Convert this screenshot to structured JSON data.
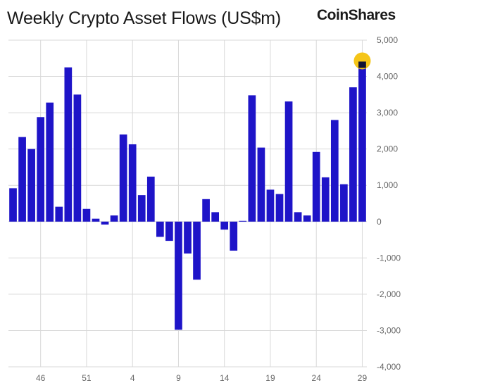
{
  "header": {
    "title": "Weekly Crypto Asset Flows (US$m)",
    "brand": "CoinShares"
  },
  "colors": {
    "bar": "#1e14c8",
    "grid": "#d9d9d9",
    "highlight_marker": "#f5c518",
    "highlight_bar": "#111133"
  },
  "chart_data": {
    "type": "bar",
    "title": "Weekly Crypto Asset Flows (US$m)",
    "xlabel": "",
    "ylabel": "",
    "ylim": [
      -4000,
      5000
    ],
    "yticks": [
      -4000,
      -3000,
      -2000,
      -1000,
      0,
      1000,
      2000,
      3000,
      4000,
      5000
    ],
    "ytick_labels": [
      "-4,000",
      "-3,000",
      "-2,000",
      "-1,000",
      "0",
      "1,000",
      "2,000",
      "3,000",
      "4,000",
      "5,000"
    ],
    "x_tick_labels": [
      {
        "index": 3,
        "label": "46"
      },
      {
        "index": 8,
        "label": "51"
      },
      {
        "index": 13,
        "label": "4"
      },
      {
        "index": 18,
        "label": "9"
      },
      {
        "index": 23,
        "label": "14"
      },
      {
        "index": 28,
        "label": "19"
      },
      {
        "index": 33,
        "label": "24"
      },
      {
        "index": 38,
        "label": "29"
      }
    ],
    "grid": true,
    "y_axis_side": "right",
    "values": [
      920,
      2330,
      2000,
      2880,
      3280,
      410,
      4250,
      3500,
      350,
      80,
      -80,
      170,
      2400,
      2130,
      730,
      1240,
      -420,
      -530,
      -2980,
      -880,
      -1600,
      620,
      260,
      -220,
      -800,
      20,
      3480,
      2040,
      880,
      760,
      3310,
      260,
      170,
      1920,
      1220,
      2800,
      1030,
      3700,
      4390
    ],
    "highlight": {
      "index": 38,
      "value": 4390
    }
  }
}
